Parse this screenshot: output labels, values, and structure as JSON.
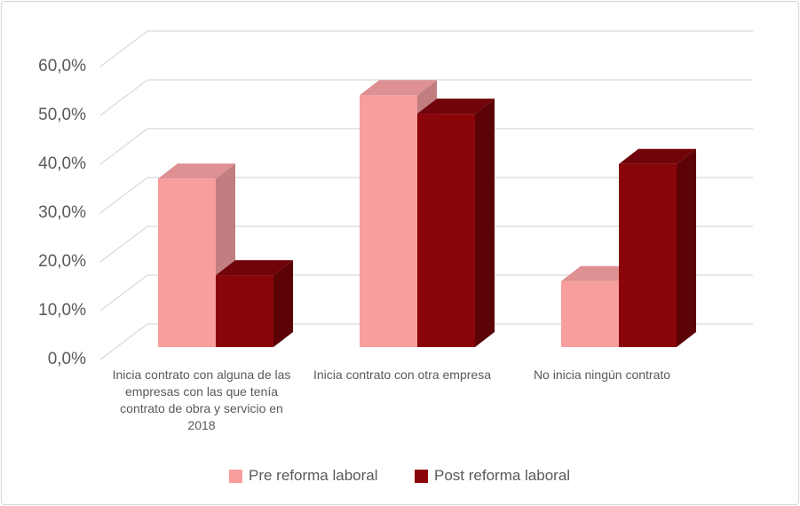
{
  "chart_data": {
    "type": "bar",
    "style": "3d-clustered-column",
    "title": "",
    "categories": [
      "Inicia contrato con alguna de las\nempresas con las que tenía\ncontrato de obra y servicio en\n2018",
      "Inicia contrato con otra empresa",
      "No inicia ningún contrato"
    ],
    "series": [
      {
        "name": "Pre reforma laboral",
        "values": [
          34.5,
          51.6,
          13.5
        ]
      },
      {
        "name": "Post reforma laboral",
        "values": [
          14.7,
          47.8,
          37.5
        ]
      }
    ],
    "unit": "%",
    "ylim": [
      0,
      60
    ],
    "ytick_step": 10,
    "ytick_labels": [
      "0,0%",
      "10,0%",
      "20,0%",
      "30,0%",
      "40,0%",
      "50,0%",
      "60,0%"
    ],
    "grid": true,
    "legend_position": "bottom"
  },
  "palette": {
    "series_faces": [
      {
        "front": "#F89E9C",
        "top": "#DE9093",
        "side": "#C17E81"
      },
      {
        "front": "#8A0509",
        "top": "#71040A",
        "side": "#5C0306"
      }
    ],
    "gridline": "#D9D9D9",
    "axis_text": "#595959",
    "frame_border": "#D6D6D6",
    "background": "#FFFFFF"
  }
}
